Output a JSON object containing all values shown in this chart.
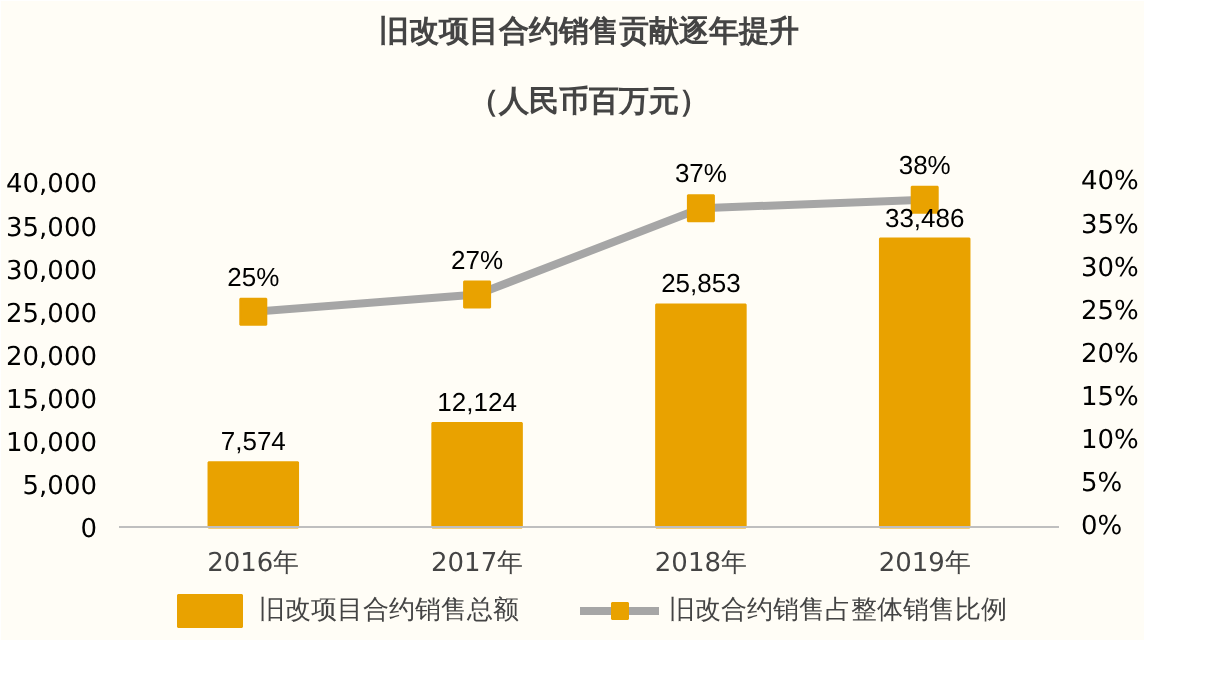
{
  "chart_data": {
    "type": "bar",
    "title": "旧改项目合约销售贡献逐年提升",
    "subtitle": "（人民币百万元）",
    "categories": [
      "2016年",
      "2017年",
      "2018年",
      "2019年"
    ],
    "series": [
      {
        "name": "旧改项目合约销售总额",
        "color": "#e9a200",
        "values": [
          7574,
          12124,
          25853,
          33486
        ],
        "value_labels": [
          "7,574",
          "12,124",
          "25,853",
          "33,486"
        ]
      },
      {
        "name": "旧改合约销售占整体销售比例",
        "type": "line",
        "axis": "y2",
        "color": "#a6a6a6",
        "colors": [
          "#e9a200",
          "#e9a200",
          "#e9a200",
          "#e9a200"
        ],
        "values": [
          25,
          27,
          37,
          38
        ],
        "value_labels": [
          "25%",
          "27%",
          "37%",
          "38%"
        ]
      }
    ],
    "ylim": [
      0,
      40000
    ],
    "yticks": [
      {
        "value": 0,
        "label": "0"
      },
      {
        "value": 5000,
        "label": "5,000"
      },
      {
        "value": 10000,
        "label": "10,000"
      },
      {
        "value": 15000,
        "label": "15,000"
      },
      {
        "value": 20000,
        "label": "20,000"
      },
      {
        "value": 25000,
        "label": "25,000"
      },
      {
        "value": 30000,
        "label": "30,000"
      },
      {
        "value": 35000,
        "label": "35,000"
      },
      {
        "value": 40000,
        "label": "40,000"
      }
    ],
    "y2lim": [
      0,
      40
    ],
    "y2ticks": [
      {
        "value": 0,
        "label": "0%"
      },
      {
        "value": 5,
        "label": "5%"
      },
      {
        "value": 10,
        "label": "10%"
      },
      {
        "value": 15,
        "label": "15%"
      },
      {
        "value": 20,
        "label": "20%"
      },
      {
        "value": 25,
        "label": "25%"
      },
      {
        "value": 30,
        "label": "30%"
      },
      {
        "value": 35,
        "label": "35%"
      },
      {
        "value": 40,
        "label": "40%"
      }
    ],
    "grid": false,
    "legend": "bottom",
    "marker": "square",
    "line_style": "solid"
  }
}
